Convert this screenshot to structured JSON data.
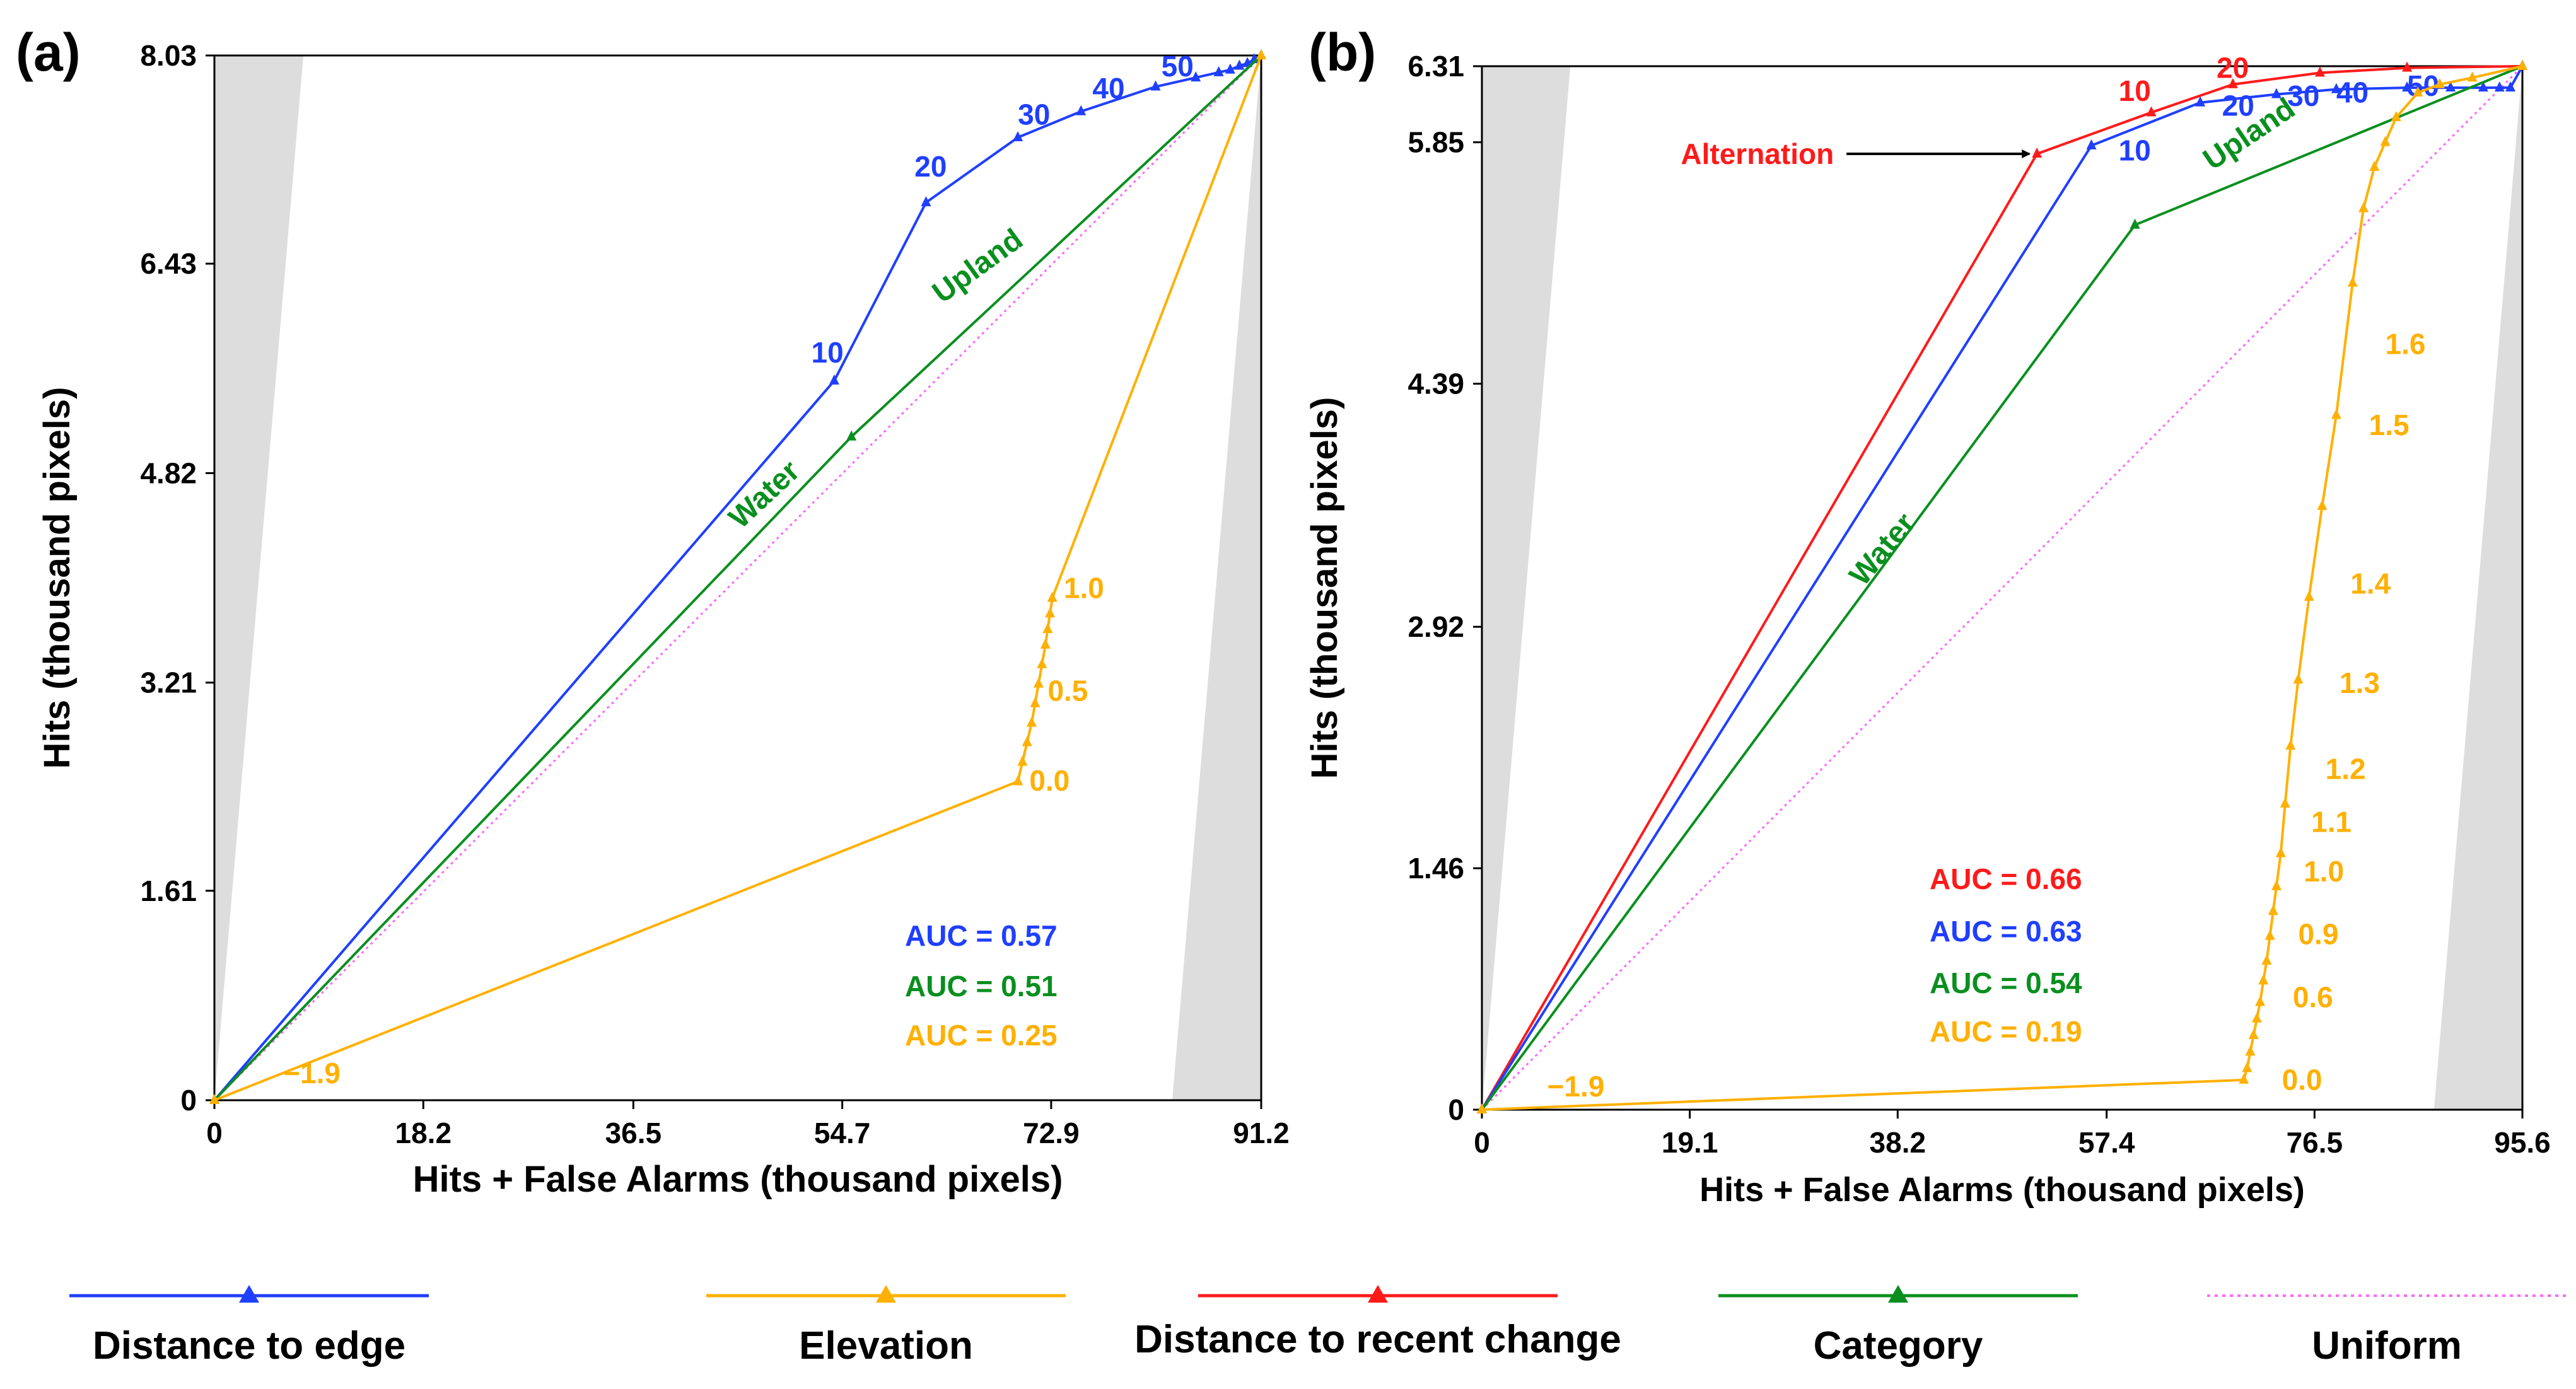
{
  "colors": {
    "distance_edge": "#1f3fff",
    "elevation": "#ffb000",
    "recent_change": "#ff1a1a",
    "category": "#0a8f1f",
    "uniform": "#ff66ff",
    "shade": "#dddddd"
  },
  "legend": [
    {
      "key": "distance_edge",
      "label": "Distance to edge",
      "style": "solid"
    },
    {
      "key": "elevation",
      "label": "Elevation",
      "style": "solid"
    },
    {
      "key": "recent_change",
      "label": "Distance to recent change",
      "style": "solid"
    },
    {
      "key": "category",
      "label": "Category",
      "style": "solid"
    },
    {
      "key": "uniform",
      "label": "Uniform",
      "style": "dotted"
    }
  ],
  "chart_data": [
    {
      "type": "line",
      "panel": "(a)",
      "xlabel": "Hits + False Alarms (thousand pixels)",
      "ylabel": "Hits (thousand pixels)",
      "xlim": [
        0,
        91.2
      ],
      "ylim": [
        0,
        8.03
      ],
      "xticks": [
        0,
        18.2,
        36.5,
        54.7,
        72.9,
        91.2
      ],
      "xtick_labels": [
        "0",
        "18.2",
        "36.5",
        "54.7",
        "72.9",
        "91.2"
      ],
      "yticks": [
        0,
        1.61,
        3.21,
        4.82,
        6.43,
        8.03
      ],
      "ytick_labels": [
        "0",
        "1.61",
        "3.21",
        "4.82",
        "6.43",
        "8.03"
      ],
      "series": [
        {
          "key": "uniform",
          "name": "Uniform",
          "style": "dotted",
          "x": [
            0,
            91.2
          ],
          "y": [
            0,
            8.03
          ]
        },
        {
          "key": "distance_edge",
          "name": "Distance to edge",
          "x": [
            0,
            54.0,
            62.0,
            70.0,
            75.5,
            82.0,
            85.5,
            87.5,
            88.5,
            89.3,
            90.0,
            90.6,
            91.2
          ],
          "y": [
            0,
            5.53,
            6.9,
            7.4,
            7.6,
            7.79,
            7.86,
            7.9,
            7.92,
            7.95,
            7.97,
            8.0,
            8.03
          ],
          "labels": [
            {
              "text": "10",
              "x": 52.0,
              "y": 5.67
            },
            {
              "text": "20",
              "x": 61.0,
              "y": 7.1
            },
            {
              "text": "30",
              "x": 70.0,
              "y": 7.5
            },
            {
              "text": "40",
              "x": 76.5,
              "y": 7.7
            },
            {
              "text": "50",
              "x": 82.5,
              "y": 7.87
            }
          ]
        },
        {
          "key": "category",
          "name": "Category",
          "x": [
            0,
            55.5,
            91.2
          ],
          "y": [
            0,
            5.1,
            8.03
          ]
        },
        {
          "key": "elevation",
          "name": "Elevation",
          "x": [
            0,
            70.0,
            70.4,
            70.8,
            71.2,
            71.5,
            71.8,
            72.1,
            72.4,
            72.6,
            72.8,
            73.0,
            91.2
          ],
          "y": [
            0,
            2.45,
            2.6,
            2.75,
            2.9,
            3.05,
            3.2,
            3.35,
            3.5,
            3.62,
            3.74,
            3.86,
            8.03
          ],
          "labels": [
            {
              "text": "−1.9",
              "x": 6.0,
              "y": 0.13
            },
            {
              "text": "0.0",
              "x": 71.0,
              "y": 2.38
            },
            {
              "text": "0.5",
              "x": 72.6,
              "y": 3.07
            },
            {
              "text": "1.0",
              "x": 74.0,
              "y": 3.86
            }
          ]
        }
      ],
      "category_labels": [
        {
          "text": "Water",
          "x": 48.5,
          "y": 4.6,
          "angle": -43
        },
        {
          "text": "Upland",
          "x": 67.0,
          "y": 6.35,
          "angle": -36
        }
      ],
      "auc": [
        {
          "key": "distance_edge",
          "text": "AUC = 0.57"
        },
        {
          "key": "category",
          "text": "AUC = 0.51"
        },
        {
          "key": "elevation",
          "text": "AUC = 0.25"
        }
      ]
    },
    {
      "type": "line",
      "panel": "(b)",
      "xlabel": "Hits + False Alarms (thousand pixels)",
      "ylabel": "Hits (thousand pixels)",
      "xlim": [
        0,
        95.6
      ],
      "ylim": [
        0,
        6.31
      ],
      "xticks": [
        0,
        19.1,
        38.2,
        57.4,
        76.5,
        95.6
      ],
      "xtick_labels": [
        "0",
        "19.1",
        "38.2",
        "57.4",
        "76.5",
        "95.6"
      ],
      "yticks": [
        0,
        1.46,
        2.92,
        4.39,
        5.85,
        6.31
      ],
      "ytick_labels": [
        "0",
        "1.46",
        "2.92",
        "4.39",
        "5.85",
        "6.31"
      ],
      "series": [
        {
          "key": "uniform",
          "name": "Uniform",
          "style": "dotted",
          "x": [
            0,
            95.6
          ],
          "y": [
            0,
            6.31
          ]
        },
        {
          "key": "recent_change",
          "name": "Distance to recent change",
          "x": [
            0,
            51.0,
            61.5,
            69.0,
            77.0,
            85.0,
            95.6
          ],
          "y": [
            0,
            5.78,
            6.03,
            6.2,
            6.27,
            6.3,
            6.31
          ],
          "labels": [
            {
              "text": "10",
              "x": 58.5,
              "y": 6.1
            },
            {
              "text": "20",
              "x": 67.5,
              "y": 6.24
            }
          ],
          "annotation": {
            "text": "Alternation",
            "target_x": 51.0,
            "target_y": 5.78,
            "text_x": 33.5,
            "text_y": 5.78
          }
        },
        {
          "key": "distance_edge",
          "name": "Distance to edge",
          "x": [
            0,
            56.0,
            66.0,
            73.0,
            78.5,
            85.0,
            89.0,
            92.0,
            93.5,
            94.5,
            95.6
          ],
          "y": [
            0,
            5.83,
            6.09,
            6.14,
            6.17,
            6.18,
            6.18,
            6.18,
            6.18,
            6.18,
            6.31
          ],
          "labels": [
            {
              "text": "10",
              "x": 58.5,
              "y": 5.74
            },
            {
              "text": "20",
              "x": 68.0,
              "y": 6.01
            },
            {
              "text": "30",
              "x": 74.0,
              "y": 6.07
            },
            {
              "text": "40",
              "x": 78.5,
              "y": 6.09
            },
            {
              "text": "50",
              "x": 85.0,
              "y": 6.13
            }
          ]
        },
        {
          "key": "category",
          "name": "Category",
          "x": [
            0,
            60.0,
            95.6
          ],
          "y": [
            0,
            5.35,
            6.31
          ]
        },
        {
          "key": "elevation",
          "name": "Elevation",
          "x": [
            0,
            70.0,
            70.3,
            70.6,
            70.9,
            71.2,
            71.5,
            71.8,
            72.1,
            72.4,
            72.7,
            73.0,
            73.4,
            73.8,
            74.3,
            75.0,
            76.0,
            77.2,
            78.5,
            80.0,
            81.0,
            82.0,
            83.0,
            84.0,
            86.0,
            88.0,
            91.0,
            95.6
          ],
          "y": [
            0,
            0.18,
            0.25,
            0.35,
            0.45,
            0.55,
            0.65,
            0.78,
            0.9,
            1.05,
            1.2,
            1.35,
            1.55,
            1.85,
            2.2,
            2.6,
            3.1,
            3.65,
            4.2,
            5.0,
            5.45,
            5.7,
            5.85,
            6.0,
            6.15,
            6.2,
            6.24,
            6.31
          ],
          "labels": [
            {
              "text": "−1.9",
              "x": 6.0,
              "y": 0.08
            },
            {
              "text": "0.0",
              "x": 73.5,
              "y": 0.12
            },
            {
              "text": "0.6",
              "x": 74.5,
              "y": 0.62
            },
            {
              "text": "0.9",
              "x": 75.0,
              "y": 1.0
            },
            {
              "text": "1.0",
              "x": 75.5,
              "y": 1.38
            },
            {
              "text": "1.1",
              "x": 76.2,
              "y": 1.68
            },
            {
              "text": "1.2",
              "x": 77.5,
              "y": 2.0
            },
            {
              "text": "1.3",
              "x": 78.8,
              "y": 2.52
            },
            {
              "text": "1.4",
              "x": 79.8,
              "y": 3.12
            },
            {
              "text": "1.5",
              "x": 81.5,
              "y": 4.08
            },
            {
              "text": "1.6",
              "x": 83.0,
              "y": 4.57
            }
          ]
        }
      ],
      "category_labels": [
        {
          "text": "Water",
          "x": 37.5,
          "y": 3.35,
          "angle": -50
        },
        {
          "text": "Upland",
          "x": 71.0,
          "y": 5.85,
          "angle": -34
        }
      ],
      "auc": [
        {
          "key": "recent_change",
          "text": "AUC = 0.66"
        },
        {
          "key": "distance_edge",
          "text": "AUC = 0.63"
        },
        {
          "key": "category",
          "text": "AUC = 0.54"
        },
        {
          "key": "elevation",
          "text": "AUC = 0.19"
        }
      ]
    }
  ]
}
